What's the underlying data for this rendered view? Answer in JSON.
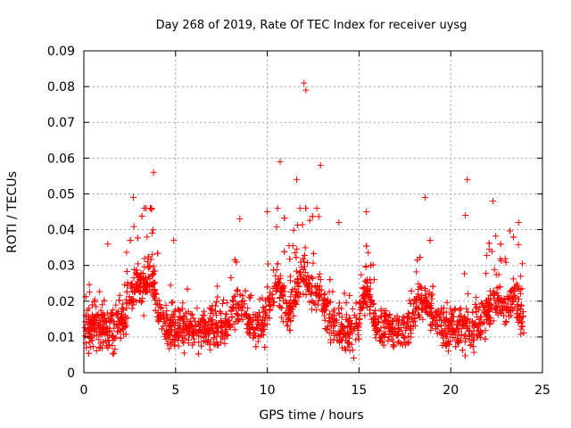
{
  "chart_data": {
    "type": "scatter",
    "title": "Day 268 of 2019, Rate Of TEC Index for receiver uysg",
    "xlabel": "GPS time / hours",
    "ylabel": "ROTI / TECUs",
    "xlim": [
      0,
      25
    ],
    "ylim": [
      0,
      0.09
    ],
    "xticks": [
      "0",
      "5",
      "10",
      "15",
      "20",
      "25"
    ],
    "yticks": [
      "0",
      "0.01",
      "0.02",
      "0.03",
      "0.04",
      "0.05",
      "0.06",
      "0.07",
      "0.08",
      "0.09"
    ],
    "grid": true,
    "marker": "plus",
    "color": "#ff0000",
    "x_extent": [
      0,
      24
    ],
    "baseline_typical": 0.012,
    "baseline_spread": [
      0.003,
      0.03
    ],
    "notable_points": [
      {
        "x": 12.0,
        "y": 0.081
      },
      {
        "x": 12.1,
        "y": 0.079
      },
      {
        "x": 10.7,
        "y": 0.059
      },
      {
        "x": 12.9,
        "y": 0.058
      },
      {
        "x": 3.8,
        "y": 0.056
      },
      {
        "x": 20.9,
        "y": 0.054
      },
      {
        "x": 11.6,
        "y": 0.054
      },
      {
        "x": 2.7,
        "y": 0.049
      },
      {
        "x": 18.6,
        "y": 0.049
      },
      {
        "x": 22.3,
        "y": 0.048
      },
      {
        "x": 10.0,
        "y": 0.045
      },
      {
        "x": 20.8,
        "y": 0.044
      },
      {
        "x": 15.4,
        "y": 0.045
      },
      {
        "x": 8.5,
        "y": 0.043
      },
      {
        "x": 13.9,
        "y": 0.042
      },
      {
        "x": 23.7,
        "y": 0.042
      },
      {
        "x": 4.9,
        "y": 0.037
      },
      {
        "x": 1.3,
        "y": 0.036
      }
    ]
  }
}
